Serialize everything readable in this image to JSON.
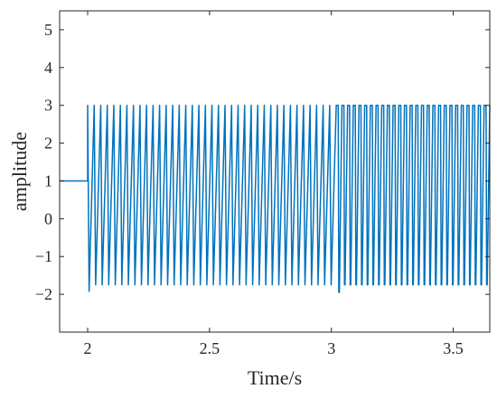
{
  "chart_data": {
    "type": "line",
    "xlabel": "Time/s",
    "ylabel": "amplitude",
    "xlim": [
      1.885,
      3.65
    ],
    "ylim": [
      -3,
      5.5
    ],
    "xticks": [
      2,
      2.5,
      3,
      3.5
    ],
    "xtick_labels": [
      "2",
      "2.5",
      "3",
      "3.5"
    ],
    "yticks": [
      -2,
      -1,
      0,
      1,
      2,
      3,
      4,
      5
    ],
    "ytick_labels": [
      "−2",
      "−1",
      "0",
      "1",
      "2",
      "3",
      "4",
      "5"
    ],
    "grid": false,
    "legend": "none",
    "series": [
      {
        "color": "#0072BD",
        "segments": [
          {
            "kind": "constant",
            "x_start": 1.885,
            "x_end": 2.0,
            "value": 1
          },
          {
            "kind": "sawtooth",
            "x_start": 2.0,
            "x_end": 3.02,
            "peak": 3,
            "trough": -1.75,
            "first_trough": -1.92,
            "cycles": 38
          },
          {
            "kind": "pulse",
            "x_start": 3.02,
            "x_end": 3.65,
            "peak": 3,
            "trough": -1.75,
            "first_trough": -1.95,
            "cycles": 27
          }
        ]
      }
    ]
  }
}
